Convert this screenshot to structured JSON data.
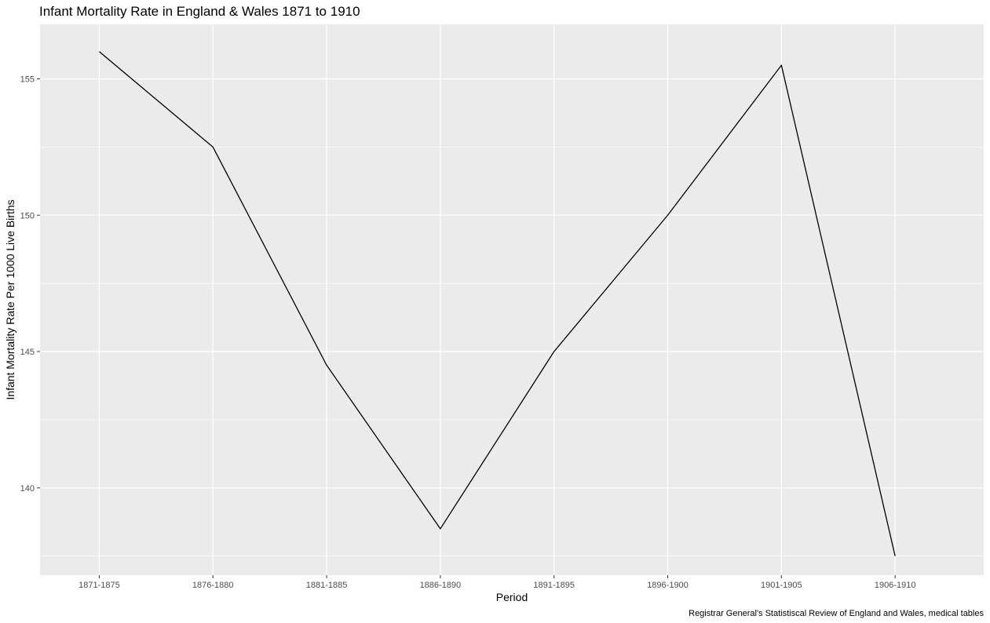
{
  "chart_data": {
    "type": "line",
    "title": "Infant Mortality Rate in England & Wales 1871 to 1910",
    "xlabel": "Period",
    "ylabel": "Infant Mortality Rate Per 1000 Live Births",
    "caption": "Registrar General's Statistiscal Review of England and Wales, medical tables",
    "categories": [
      "1871-1875",
      "1876-1880",
      "1881-1885",
      "1886-1890",
      "1891-1895",
      "1896-1900",
      "1901-1905",
      "1906-1910"
    ],
    "values": [
      156,
      152.5,
      144.5,
      138.5,
      145,
      150,
      155.5,
      137.5
    ],
    "ylim": [
      136.8,
      157
    ],
    "yticks": [
      140,
      145,
      150,
      155
    ],
    "grid": true,
    "colors": {
      "panel": "#ebebeb",
      "grid": "#ffffff",
      "line": "#000000"
    }
  }
}
